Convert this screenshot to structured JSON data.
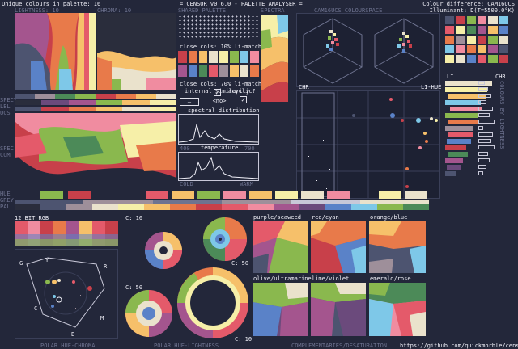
{
  "header": {
    "unique_colours": "Unique colours in palette: 16",
    "title": "= CENSOR v0.6.0 - PALETTE ANALYSER =",
    "colour_difference": "Colour difference: CAM16UCS",
    "illuminant": "Illuminant: D(T=5500.0°K)"
  },
  "top_labels": {
    "lightness": "LIGHTNESS: 10",
    "chroma": "CHROMA: 10",
    "shared_palette": "SHARED PALETTE",
    "cam16ucs": "CAM16UCS COLOURSPACE",
    "spectra": "SPECTRA",
    "spect_side": "SPECT",
    "lbl_ucs": "LBL",
    "lbl_ucs2": "UCS"
  },
  "matches": {
    "close_10": "close cols: 10% li-match",
    "close_70": "close cols: 70% li-match"
  },
  "controls": {
    "internal_similarity": "internal similarity",
    "internal_checked": "✓",
    "acyclic": "acyclic?",
    "acyclic_checked": "✓",
    "no_label": "<no>",
    "dash_label": "—"
  },
  "spectral": {
    "title": "spectral distribution",
    "x_left": "400",
    "x_mid": "-",
    "x_right": "700"
  },
  "temperature": {
    "title": "temperature",
    "x_left": "COLD",
    "x_right": "WARM"
  },
  "right_panel": {
    "chr": "CHR",
    "li_hue": "LI-HUE",
    "li": "LI",
    "chr2": "CHR",
    "vertical_text": "COLOURS BY LIGHTNESS"
  },
  "side_labels": {
    "spec": "SPEC",
    "com": "COM",
    "hue": "HUE",
    "grey": "GREY",
    "pal": "PAL"
  },
  "bottom": {
    "bit12": "12 BIT RGB",
    "c10a": "C: 10",
    "c50a": "C: 50",
    "c50b": "C: 50",
    "c10b": "C: 10",
    "polar_hue_chroma": "POLAR HUE-CHROMA",
    "polar_hue_lightness": "POLAR HUE-LIGHTNESS",
    "complementaries": "COMPLEMENTARIES/DESATURATION",
    "github": "https://github.com/quickmorble/censor"
  },
  "triangle_labels": {
    "g": "G",
    "y": "Y",
    "r": "R",
    "c": "C",
    "m": "M",
    "b": "B"
  },
  "complementaries": [
    {
      "label": "purple/seaweed"
    },
    {
      "label": "red/cyan"
    },
    {
      "label": "orange/blue"
    },
    {
      "label": "olive/ultramarine"
    },
    {
      "label": "lime/violet"
    },
    {
      "label": "emerald/rose"
    }
  ],
  "palette": {
    "colors": [
      "#2a2d3c",
      "#4d5470",
      "#9e8f9a",
      "#eae2cc",
      "#f6efa8",
      "#f6c06a",
      "#e87a4a",
      "#c8404a",
      "#e45a6a",
      "#f08ca0",
      "#a4558e",
      "#6b4a7c",
      "#5a82c8",
      "#7ec8e8",
      "#8ab84e",
      "#4c8a58"
    ]
  },
  "colors": {
    "background": "#23273a",
    "panel": "#1d2133",
    "text": "#f0f0f8",
    "accent_dim": "#6e7390"
  }
}
